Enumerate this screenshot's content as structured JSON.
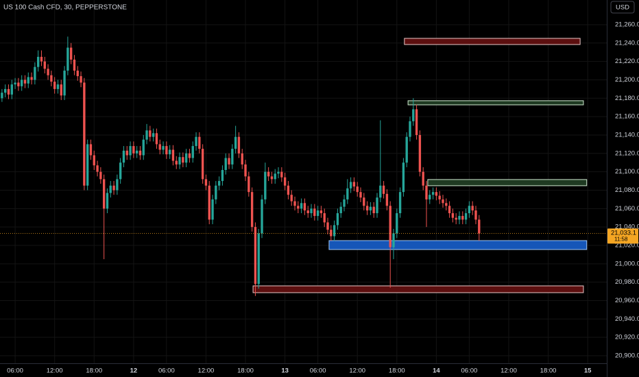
{
  "chart_data": {
    "type": "candlestick",
    "title": "US 100 Cash CFD, 30, PEPPERSTONE",
    "currency": "USD",
    "up_color": "#26a69a",
    "down_color": "#ef5350",
    "grid": true,
    "ylim": [
      20891.8,
      21286.8
    ],
    "yticks": [
      {
        "value": 20900,
        "label": "20,900.0"
      },
      {
        "value": 20920,
        "label": "20,920.0"
      },
      {
        "value": 20940,
        "label": "20,940.0"
      },
      {
        "value": 20960,
        "label": "20,960.0"
      },
      {
        "value": 20980,
        "label": "20,980.0"
      },
      {
        "value": 21000,
        "label": "21,000.0"
      },
      {
        "value": 21020,
        "label": "21,020.0"
      },
      {
        "value": 21040,
        "label": "21,040.0"
      },
      {
        "value": 21060,
        "label": "21,060.0"
      },
      {
        "value": 21080,
        "label": "21,080.0"
      },
      {
        "value": 21100,
        "label": "21,100.0"
      },
      {
        "value": 21120,
        "label": "21,120.0"
      },
      {
        "value": 21140,
        "label": "21,140.0"
      },
      {
        "value": 21160,
        "label": "21,160.0"
      },
      {
        "value": 21180,
        "label": "21,180.0"
      },
      {
        "value": 21200,
        "label": "21,200.0"
      },
      {
        "value": 21220,
        "label": "21,220.0"
      },
      {
        "value": 21240,
        "label": "21,240.0"
      },
      {
        "value": 21260,
        "label": "21,260.0"
      }
    ],
    "xlim": [
      -0.6,
      183.8
    ],
    "xticks": [
      {
        "value": 4,
        "label": "06:00"
      },
      {
        "value": 16,
        "label": "12:00"
      },
      {
        "value": 28,
        "label": "18:00"
      },
      {
        "value": 40,
        "label": "12"
      },
      {
        "value": 50,
        "label": "06:00"
      },
      {
        "value": 62,
        "label": "12:00"
      },
      {
        "value": 74,
        "label": "18:00"
      },
      {
        "value": 86,
        "label": "13"
      },
      {
        "value": 96,
        "label": "06:00"
      },
      {
        "value": 108,
        "label": "12:00"
      },
      {
        "value": 120,
        "label": "18:00"
      },
      {
        "value": 132,
        "label": "14"
      },
      {
        "value": 142,
        "label": "06:00"
      },
      {
        "value": 154,
        "label": "12:00"
      },
      {
        "value": 166,
        "label": "18:00"
      },
      {
        "value": 178,
        "label": "15"
      }
    ],
    "open": [
      21180,
      21186,
      21190,
      21184,
      21195,
      21197,
      21193,
      21200,
      21196,
      21203,
      21200,
      21214,
      21225,
      21220,
      21212,
      21205,
      21198,
      21190,
      21195,
      21183,
      21210,
      21235,
      21222,
      21210,
      21204,
      21197,
      21085,
      21130,
      21118,
      21107,
      21100,
      21092,
      21060,
      21077,
      21085,
      21080,
      21092,
      21110,
      21123,
      21118,
      21128,
      21120,
      21123,
      21118,
      21135,
      21145,
      21138,
      21142,
      21130,
      21124,
      21128,
      21119,
      21124,
      21112,
      21108,
      21116,
      21110,
      21120,
      21115,
      21128,
      21138,
      21125,
      21092,
      21085,
      21048,
      21070,
      21085,
      21090,
      21102,
      21115,
      21108,
      21125,
      21138,
      21120,
      21108,
      21095,
      21078,
      21040,
      20978,
      21033,
      21070,
      21100,
      21095,
      21092,
      21098,
      21100,
      21094,
      21085,
      21075,
      21068,
      21063,
      21060,
      21066,
      21058,
      21055,
      21060,
      21052,
      21058,
      21055,
      21045,
      21037,
      21030,
      21042,
      21055,
      21062,
      21070,
      21082,
      21089,
      21084,
      21078,
      21072,
      21063,
      21058,
      21062,
      21055,
      21072,
      21085,
      21076,
      21063,
      21018,
      21033,
      21055,
      21078,
      21110,
      21138,
      21155,
      21168,
      21140,
      21100,
      21085,
      21070,
      21075,
      21078,
      21074,
      21070,
      21066,
      21063,
      21055,
      21050,
      21048,
      21052,
      21048,
      21055,
      21063,
      21058,
      21048
    ],
    "high": [
      21190,
      21195,
      21195,
      21200,
      21202,
      21202,
      21205,
      21205,
      21208,
      21208,
      21219,
      21232,
      21232,
      21225,
      21217,
      21210,
      21203,
      21200,
      21200,
      21215,
      21247,
      21240,
      21227,
      21215,
      21209,
      21202,
      21135,
      21135,
      21123,
      21112,
      21105,
      21097,
      21082,
      21090,
      21090,
      21097,
      21115,
      21128,
      21128,
      21133,
      21133,
      21128,
      21128,
      21140,
      21152,
      21150,
      21147,
      21147,
      21135,
      21133,
      21133,
      21129,
      21129,
      21117,
      21121,
      21121,
      21125,
      21125,
      21133,
      21143,
      21143,
      21130,
      21097,
      21090,
      21075,
      21090,
      21095,
      21107,
      21120,
      21120,
      21130,
      21150,
      21143,
      21125,
      21113,
      21100,
      21083,
      21045,
      21038,
      21075,
      21110,
      21105,
      21100,
      21103,
      21105,
      21105,
      21099,
      21090,
      21080,
      21073,
      21068,
      21071,
      21071,
      21063,
      21065,
      21065,
      21063,
      21063,
      21060,
      21050,
      21042,
      21047,
      21060,
      21067,
      21075,
      21092,
      21094,
      21094,
      21089,
      21083,
      21077,
      21068,
      21067,
      21067,
      21077,
      21156,
      21090,
      21081,
      21068,
      21038,
      21060,
      21083,
      21115,
      21143,
      21160,
      21180,
      21173,
      21145,
      21105,
      21090,
      21080,
      21083,
      21083,
      21079,
      21075,
      21071,
      21068,
      21060,
      21055,
      21057,
      21057,
      21060,
      21068,
      21068,
      21063,
      21053
    ],
    "low": [
      21176,
      21181,
      21179,
      21179,
      21190,
      21188,
      21188,
      21191,
      21191,
      21195,
      21195,
      21209,
      21215,
      21207,
      21200,
      21193,
      21185,
      21185,
      21178,
      21178,
      21205,
      21217,
      21205,
      21199,
      21192,
      21080,
      21080,
      21113,
      21102,
      21095,
      21087,
      21005,
      21055,
      21072,
      21075,
      21075,
      21087,
      21105,
      21113,
      21113,
      21115,
      21115,
      21113,
      21113,
      21130,
      21133,
      21133,
      21125,
      21119,
      21119,
      21114,
      21114,
      21107,
      21103,
      21103,
      21105,
      21105,
      21110,
      21110,
      21123,
      21120,
      21087,
      21080,
      21043,
      21043,
      21065,
      21080,
      21085,
      21097,
      21103,
      21103,
      21120,
      21115,
      21103,
      21090,
      21073,
      21035,
      20965,
      20973,
      21028,
      21065,
      21090,
      21087,
      21087,
      21093,
      21089,
      21080,
      21070,
      21063,
      21058,
      21055,
      21055,
      21053,
      21050,
      21050,
      21047,
      21047,
      21050,
      21040,
      21032,
      21025,
      21025,
      21037,
      21050,
      21057,
      21065,
      21077,
      21079,
      21073,
      21067,
      21058,
      21053,
      21053,
      21050,
      21050,
      21067,
      21071,
      21058,
      20974,
      21005,
      21028,
      21050,
      21073,
      21105,
      21133,
      21150,
      21135,
      21095,
      21080,
      21040,
      21065,
      21070,
      21069,
      21065,
      21061,
      21058,
      21050,
      21045,
      21043,
      21043,
      21043,
      21043,
      21050,
      21053,
      21043,
      21025
    ],
    "close": [
      21186,
      21190,
      21184,
      21195,
      21197,
      21193,
      21200,
      21196,
      21203,
      21200,
      21214,
      21225,
      21220,
      21212,
      21205,
      21198,
      21190,
      21195,
      21183,
      21210,
      21235,
      21222,
      21210,
      21204,
      21197,
      21085,
      21130,
      21118,
      21107,
      21100,
      21092,
      21060,
      21077,
      21085,
      21080,
      21092,
      21110,
      21123,
      21118,
      21128,
      21120,
      21123,
      21118,
      21135,
      21145,
      21138,
      21142,
      21130,
      21124,
      21128,
      21119,
      21124,
      21112,
      21108,
      21116,
      21110,
      21120,
      21115,
      21128,
      21138,
      21125,
      21092,
      21085,
      21048,
      21070,
      21085,
      21090,
      21102,
      21115,
      21108,
      21125,
      21138,
      21120,
      21108,
      21095,
      21078,
      21040,
      20978,
      21033,
      21070,
      21100,
      21095,
      21092,
      21098,
      21100,
      21094,
      21085,
      21075,
      21068,
      21063,
      21060,
      21066,
      21058,
      21055,
      21060,
      21052,
      21058,
      21055,
      21045,
      21037,
      21030,
      21042,
      21055,
      21062,
      21070,
      21082,
      21089,
      21084,
      21078,
      21072,
      21063,
      21058,
      21062,
      21055,
      21072,
      21085,
      21076,
      21063,
      21018,
      21033,
      21055,
      21078,
      21110,
      21138,
      21155,
      21168,
      21140,
      21100,
      21085,
      21070,
      21075,
      21078,
      21074,
      21070,
      21066,
      21063,
      21055,
      21050,
      21048,
      21052,
      21048,
      21055,
      21063,
      21058,
      21048,
      21033
    ],
    "zones": [
      {
        "x": [
          122.3,
          175.7
        ],
        "y": [
          21238.4,
          21245.1
        ],
        "color": "#5c0f0f",
        "border": "#e8c8c8"
      },
      {
        "x": [
          123.4,
          176.7
        ],
        "y": [
          21172.8,
          21177.3
        ],
        "color": "#1f3a22",
        "border": "#cfe8cf"
      },
      {
        "x": [
          129.4,
          177.7
        ],
        "y": [
          21084.9,
          21091.6
        ],
        "color": "#1f3a22",
        "border": "#cfe8cf"
      },
      {
        "x": [
          99.4,
          177.7
        ],
        "y": [
          21015.5,
          21025.2
        ],
        "color": "#1656b8",
        "border": "#9ec5f5"
      },
      {
        "x": [
          76.3,
          176.7
        ],
        "y": [
          20968.6,
          20976.0
        ],
        "color": "#5c0f0f",
        "border": "#e8c8c8"
      }
    ],
    "last_price": 21033.1,
    "last_price_label": "21,033.1",
    "countdown": "11:58",
    "last_price_color": "#f5a623"
  }
}
